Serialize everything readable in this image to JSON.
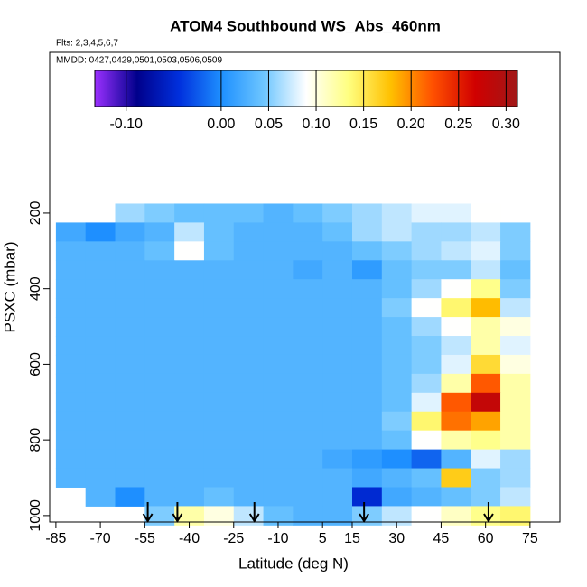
{
  "chart_data": {
    "type": "heatmap",
    "title": "ATOM4 Southbound WS_Abs_460nm",
    "subtitle": "Flts: 2,3,4,5,6,7",
    "annotation": "MMDD: 0427,0429,0501,0503,0506,0509",
    "xlabel": "Latitude (deg N)",
    "ylabel": "PSXC (mbar)",
    "xlim": [
      -87.1,
      85.1
    ],
    "xticks": [
      -85,
      -70,
      -55,
      -40,
      -25,
      -10,
      5,
      15,
      30,
      45,
      60,
      75
    ],
    "ylim": [
      1017,
      -225
    ],
    "yticks": [
      200,
      400,
      600,
      800,
      1000
    ],
    "x": [
      -80,
      -70,
      -60,
      -50,
      -40,
      -30,
      -20,
      -10,
      0,
      10,
      20,
      30,
      40,
      50,
      60,
      70
    ],
    "y": [
      200,
      250,
      300,
      350,
      400,
      450,
      500,
      550,
      600,
      650,
      700,
      750,
      800,
      850,
      900,
      950,
      1000
    ],
    "z": [
      [
        null,
        null,
        0.06,
        0.05,
        0.04,
        0.04,
        0.04,
        0.03,
        0.04,
        0.05,
        0.06,
        0.07,
        0.08,
        0.08,
        0.09,
        null
      ],
      [
        0.02,
        0.0,
        0.02,
        0.03,
        0.07,
        0.04,
        0.03,
        0.03,
        0.03,
        0.04,
        0.06,
        0.07,
        0.06,
        0.06,
        0.07,
        0.05
      ],
      [
        0.03,
        0.03,
        0.03,
        0.04,
        0.09,
        0.04,
        0.03,
        0.03,
        0.03,
        0.03,
        0.04,
        0.05,
        0.06,
        0.07,
        0.08,
        0.05
      ],
      [
        0.03,
        0.03,
        0.03,
        0.03,
        0.03,
        0.03,
        0.03,
        0.03,
        0.02,
        0.03,
        0.01,
        0.04,
        0.05,
        0.05,
        0.07,
        0.04
      ],
      [
        0.03,
        0.03,
        0.03,
        0.03,
        0.03,
        0.03,
        0.03,
        0.03,
        0.03,
        0.03,
        0.03,
        0.04,
        0.06,
        0.09,
        0.13,
        0.05
      ],
      [
        0.03,
        0.03,
        0.03,
        0.03,
        0.03,
        0.03,
        0.03,
        0.03,
        0.03,
        0.03,
        0.03,
        0.05,
        0.09,
        0.14,
        0.18,
        0.07
      ],
      [
        0.03,
        0.03,
        0.03,
        0.03,
        0.03,
        0.03,
        0.03,
        0.03,
        0.03,
        0.03,
        0.03,
        0.04,
        0.06,
        0.09,
        0.12,
        0.1
      ],
      [
        0.03,
        0.03,
        0.03,
        0.03,
        0.03,
        0.03,
        0.03,
        0.03,
        0.03,
        0.03,
        0.03,
        0.04,
        0.05,
        0.07,
        0.12,
        0.08
      ],
      [
        0.03,
        0.03,
        0.03,
        0.03,
        0.03,
        0.03,
        0.03,
        0.03,
        0.03,
        0.03,
        0.03,
        0.04,
        0.05,
        0.08,
        0.16,
        0.1
      ],
      [
        0.03,
        0.03,
        0.03,
        0.03,
        0.03,
        0.03,
        0.03,
        0.03,
        0.03,
        0.03,
        0.03,
        0.04,
        0.06,
        0.12,
        0.22,
        0.12
      ],
      [
        0.03,
        0.03,
        0.03,
        0.03,
        0.03,
        0.03,
        0.03,
        0.03,
        0.03,
        0.03,
        0.03,
        0.04,
        0.08,
        0.22,
        0.28,
        0.12
      ],
      [
        0.03,
        0.03,
        0.03,
        0.03,
        0.03,
        0.03,
        0.03,
        0.03,
        0.03,
        0.03,
        0.03,
        0.05,
        0.14,
        0.21,
        0.19,
        0.12
      ],
      [
        0.03,
        0.03,
        0.03,
        0.03,
        0.03,
        0.03,
        0.03,
        0.03,
        0.03,
        0.03,
        0.03,
        0.04,
        0.09,
        0.12,
        0.13,
        0.12
      ],
      [
        0.03,
        0.03,
        0.03,
        0.03,
        0.03,
        0.03,
        0.03,
        0.03,
        0.03,
        0.02,
        0.01,
        0.0,
        -0.02,
        0.03,
        0.08,
        0.06
      ],
      [
        0.03,
        0.03,
        0.03,
        0.03,
        0.03,
        0.03,
        0.03,
        0.03,
        0.03,
        0.03,
        0.02,
        0.03,
        0.04,
        0.17,
        0.05,
        0.06
      ],
      [
        null,
        0.03,
        0.0,
        0.03,
        0.03,
        0.04,
        0.03,
        0.03,
        0.03,
        0.03,
        -0.05,
        0.02,
        0.03,
        0.04,
        0.05,
        0.07
      ],
      [
        null,
        null,
        null,
        0.05,
        0.12,
        0.1,
        0.07,
        0.04,
        0.03,
        0.03,
        0.05,
        0.07,
        0.09,
        0.11,
        0.13,
        0.14
      ]
    ],
    "arrows": [
      -54,
      -44,
      -18,
      19,
      61
    ],
    "colorbar": {
      "lim": [
        -0.133,
        0.312
      ],
      "ticks": [
        {
          "value": -0.1,
          "label": "-0.10"
        },
        {
          "value": 0,
          "label": "0.00"
        },
        {
          "value": 0.05,
          "label": "0.05"
        },
        {
          "value": 0.1,
          "label": "0.10"
        },
        {
          "value": 0.15,
          "label": "0.15"
        },
        {
          "value": 0.2,
          "label": "0.20"
        },
        {
          "value": 0.25,
          "label": "0.25"
        },
        {
          "value": 0.3,
          "label": "0.30"
        }
      ],
      "colors": [
        "#9b30ff",
        "#00008b",
        "#0030dd",
        "#1e90ff",
        "#6ec6ff",
        "#ffffff",
        "#ffff80",
        "#ffc000",
        "#ff5000",
        "#d00000",
        "#a01818"
      ]
    }
  }
}
